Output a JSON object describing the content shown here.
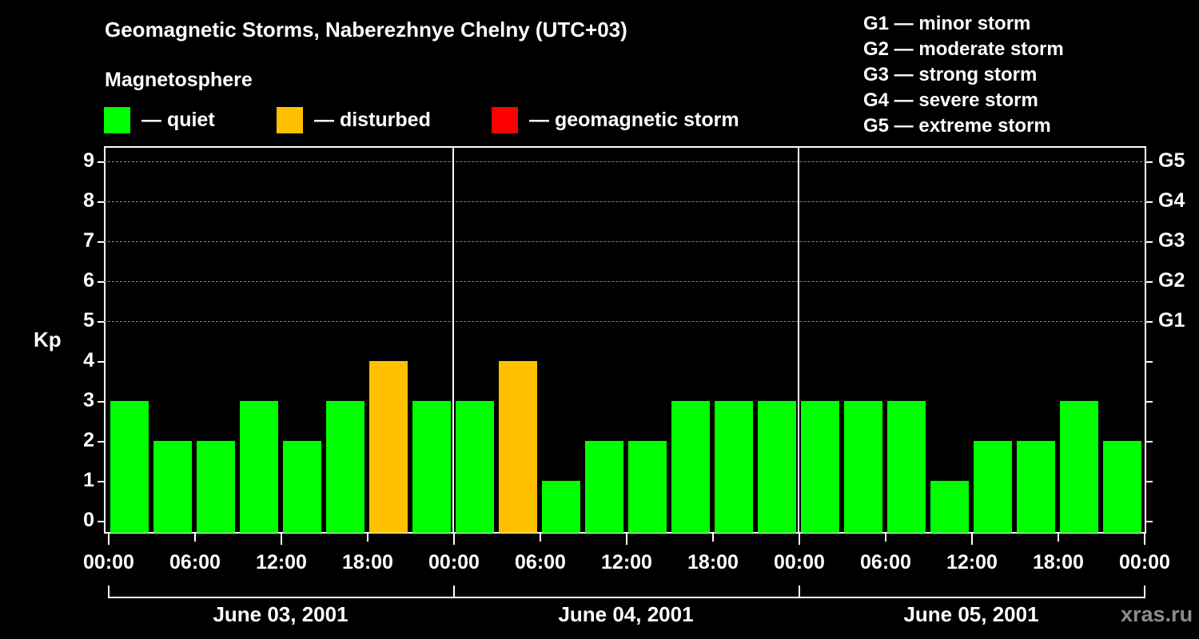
{
  "header": {
    "title": "Geomagnetic Storms, Naberezhnye Chelny (UTC+03)",
    "subtitle": "Magnetosphere"
  },
  "legend": {
    "items": [
      {
        "label": "— quiet",
        "color": "#00ff00"
      },
      {
        "label": "— disturbed",
        "color": "#ffc000"
      },
      {
        "label": "— geomagnetic storm",
        "color": "#ff0000"
      }
    ]
  },
  "g_legend": {
    "items": [
      "G1 — minor storm",
      "G2 — moderate storm",
      "G3 — strong storm",
      "G4 — severe storm",
      "G5 — extreme storm"
    ]
  },
  "axes": {
    "ylabel": "Kp",
    "yticks": [
      "0",
      "1",
      "2",
      "3",
      "4",
      "5",
      "6",
      "7",
      "8",
      "9"
    ],
    "right_labels": [
      {
        "kp": 5,
        "label": "G1"
      },
      {
        "kp": 6,
        "label": "G2"
      },
      {
        "kp": 7,
        "label": "G3"
      },
      {
        "kp": 8,
        "label": "G4"
      },
      {
        "kp": 9,
        "label": "G5"
      }
    ],
    "xticks": [
      "00:00",
      "06:00",
      "12:00",
      "18:00",
      "00:00",
      "06:00",
      "12:00",
      "18:00",
      "00:00",
      "06:00",
      "12:00",
      "18:00",
      "00:00"
    ],
    "days": [
      "June 03, 2001",
      "June 04, 2001",
      "June 05, 2001"
    ]
  },
  "watermark": "xras.ru",
  "colors": {
    "quiet": "#00ff00",
    "disturbed": "#ffc000",
    "storm": "#ff0000",
    "background": "#000000",
    "grid": "#8a8a8a"
  },
  "chart_data": {
    "type": "bar",
    "title": "Geomagnetic Storms, Naberezhnye Chelny (UTC+03)",
    "subtitle": "Magnetosphere",
    "xlabel": "",
    "ylabel": "Kp",
    "ylim": [
      0,
      9
    ],
    "grid": true,
    "interval_hours": 3,
    "categories": [
      "June 03 00:00",
      "June 03 03:00",
      "June 03 06:00",
      "June 03 09:00",
      "June 03 12:00",
      "June 03 15:00",
      "June 03 18:00",
      "June 03 21:00",
      "June 04 00:00",
      "June 04 03:00",
      "June 04 06:00",
      "June 04 09:00",
      "June 04 12:00",
      "June 04 15:00",
      "June 04 18:00",
      "June 04 21:00",
      "June 05 00:00",
      "June 05 03:00",
      "June 05 06:00",
      "June 05 09:00",
      "June 05 12:00",
      "June 05 15:00",
      "June 05 18:00",
      "June 05 21:00"
    ],
    "values": [
      3,
      2,
      2,
      3,
      2,
      3,
      4,
      3,
      3,
      4,
      1,
      2,
      2,
      3,
      3,
      3,
      3,
      3,
      3,
      1,
      2,
      2,
      3,
      2
    ],
    "status": [
      "quiet",
      "quiet",
      "quiet",
      "quiet",
      "quiet",
      "quiet",
      "disturbed",
      "quiet",
      "quiet",
      "disturbed",
      "quiet",
      "quiet",
      "quiet",
      "quiet",
      "quiet",
      "quiet",
      "quiet",
      "quiet",
      "quiet",
      "quiet",
      "quiet",
      "quiet",
      "quiet",
      "quiet"
    ],
    "legend": [
      "quiet",
      "disturbed",
      "geomagnetic storm"
    ],
    "secondary_axis": {
      "5": "G1",
      "6": "G2",
      "7": "G3",
      "8": "G4",
      "9": "G5"
    },
    "day_labels": [
      "June 03, 2001",
      "June 04, 2001",
      "June 05, 2001"
    ]
  }
}
